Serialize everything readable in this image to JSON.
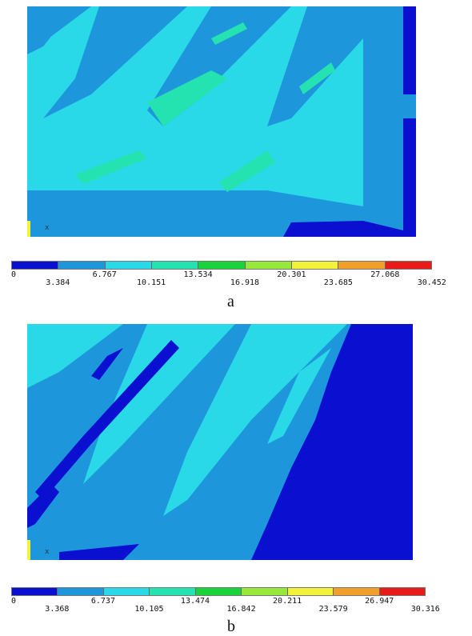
{
  "palette": [
    "#0a0fd0",
    "#1e96dc",
    "#29d9e8",
    "#25e3b0",
    "#18d43a",
    "#96e83a",
    "#f2f23a",
    "#f0a02a",
    "#e81a1a"
  ],
  "panels": [
    {
      "label": "a",
      "axis_marker": "x",
      "legend_ticks": [
        "0",
        "3.384",
        "6.767",
        "10.151",
        "13.534",
        "16.918",
        "20.301",
        "23.685",
        "27.068",
        "30.452"
      ]
    },
    {
      "label": "b",
      "axis_marker": "x",
      "legend_ticks": [
        "0",
        "3.368",
        "6.737",
        "10.105",
        "13.474",
        "16.842",
        "20.211",
        "23.579",
        "26.947",
        "30.316"
      ]
    }
  ]
}
